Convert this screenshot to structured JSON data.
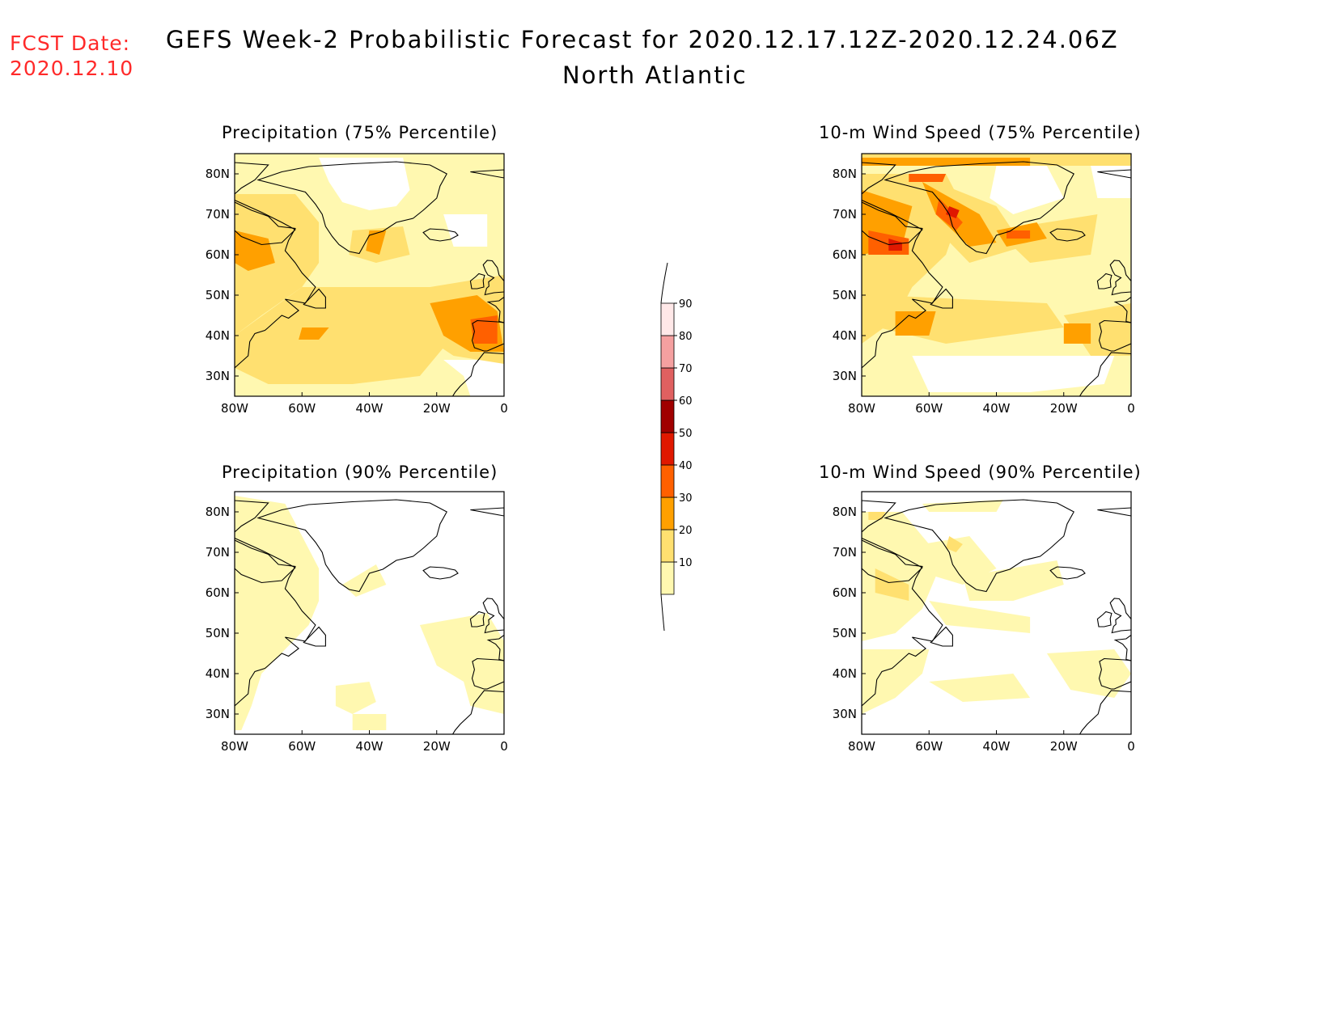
{
  "forecast_date": {
    "label": "FCST Date:",
    "value": "2020.12.10"
  },
  "title": {
    "line1": "GEFS Week-2 Probabilistic Forecast for 2020.12.17.12Z-2020.12.24.06Z",
    "line2": "North Atlantic"
  },
  "map_axes": {
    "lon_ticks": [
      "80W",
      "60W",
      "40W",
      "20W",
      "0"
    ],
    "lat_ticks": [
      "80N",
      "70N",
      "60N",
      "50N",
      "40N",
      "30N"
    ],
    "lon_range": [
      -80,
      0
    ],
    "lat_range": [
      25,
      85
    ]
  },
  "panels": [
    {
      "id": "precip75",
      "title": "Precipitation (75% Percentile)"
    },
    {
      "id": "wind75",
      "title": "10-m Wind Speed (75% Percentile)"
    },
    {
      "id": "precip90",
      "title": "Precipitation (90% Percentile)"
    },
    {
      "id": "wind90",
      "title": "10-m Wind Speed (90% Percentile)"
    }
  ],
  "colorbar": {
    "levels": [
      "10",
      "20",
      "30",
      "40",
      "50",
      "60",
      "70",
      "80",
      "90"
    ],
    "colors": [
      "#fff8b0",
      "#ffe070",
      "#ffa000",
      "#ff6000",
      "#e01800",
      "#a00000",
      "#e06060",
      "#f5a0a0",
      "#ffe8e8"
    ]
  },
  "colors": {
    "forecast_date": "#ff2a2a",
    "land_outline": "#000000"
  }
}
